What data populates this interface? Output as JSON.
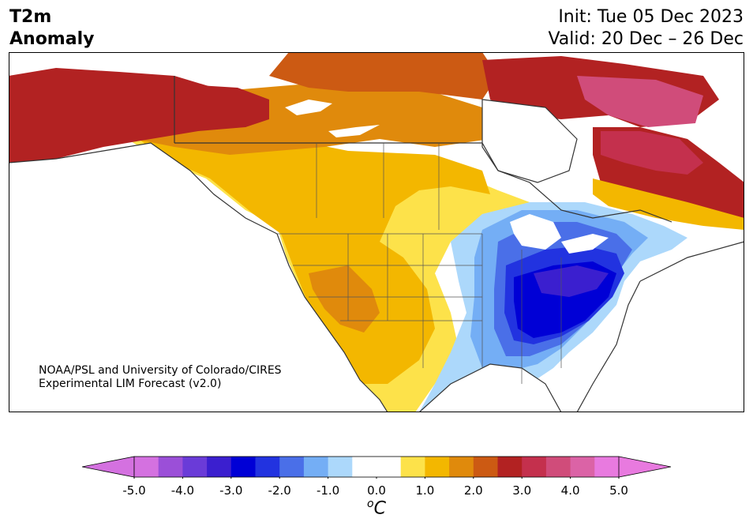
{
  "header": {
    "title_line1": "T2m",
    "title_line2": "Anomaly",
    "init": "Init: Tue 05 Dec 2023",
    "valid": "Valid: 20 Dec – 26 Dec"
  },
  "credit": {
    "line1": "NOAA/PSL and University of Colorado/CIRES",
    "line2": "Experimental LIM Forecast (v2.0)"
  },
  "colorbar": {
    "unit_prefix": "o",
    "unit": "C",
    "tick_labels": [
      "-5.0",
      "-4.0",
      "-3.0",
      "-2.0",
      "-1.0",
      "0.0",
      "1.0",
      "2.0",
      "3.0",
      "4.0",
      "5.0"
    ],
    "colors": [
      "#d471e0",
      "#9b4fd8",
      "#6a3bd8",
      "#3b1fcf",
      "#0000d6",
      "#2233e0",
      "#4a6fe8",
      "#74aef5",
      "#acd8fb",
      "#ffffff",
      "#ffffff",
      "#fde24a",
      "#f3b700",
      "#e08a0c",
      "#cc5a13",
      "#b22222",
      "#c4304d",
      "#d04c7a",
      "#db63a6",
      "#e87adf"
    ],
    "extend_low_color": "#d471e0",
    "extend_high_color": "#e87adf"
  },
  "map": {
    "region": "North America",
    "variable": "2m temperature anomaly",
    "cold_anomaly_region": "Eastern United States",
    "warm_anomaly_region": "Western North America, Canada, Alaska"
  }
}
